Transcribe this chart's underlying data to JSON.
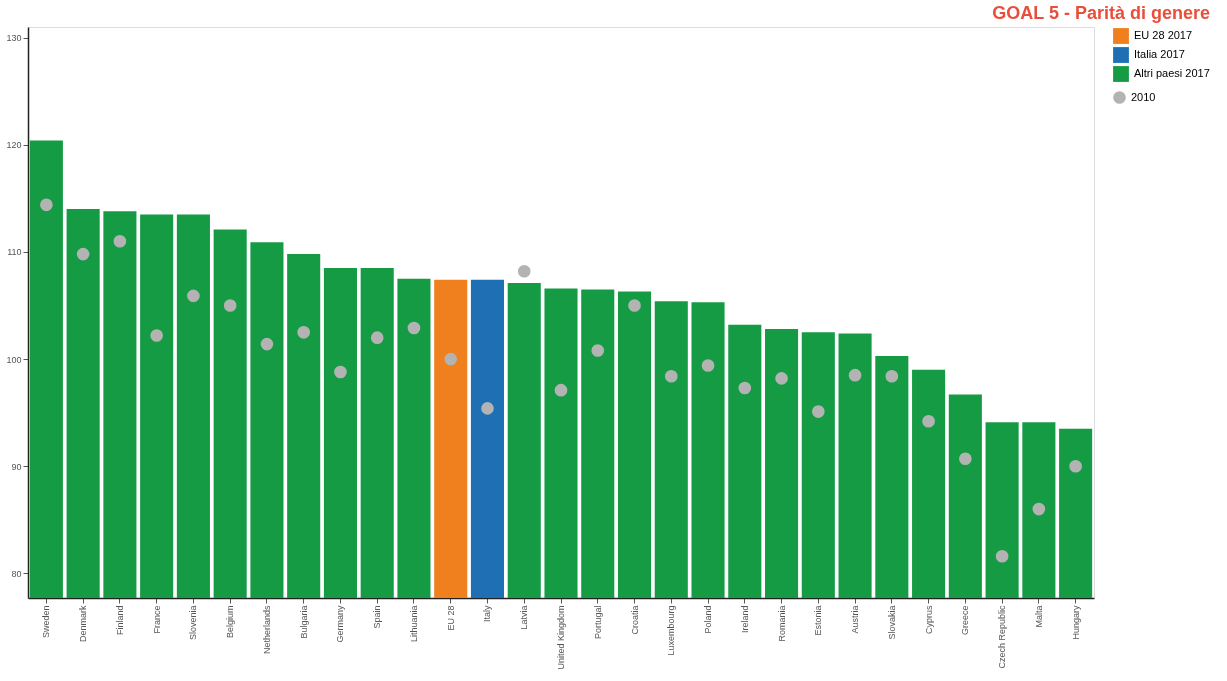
{
  "chart_data": {
    "type": "bar",
    "title": "GOAL 5 - Parità di genere",
    "categories": [
      "Sweden",
      "Denmark",
      "Finland",
      "France",
      "Slovenia",
      "Belgium",
      "Netherlands",
      "Bulgaria",
      "Germany",
      "Spain",
      "Lithuania",
      "EU 28",
      "Italy",
      "Latvia",
      "United Kingdom",
      "Portugal",
      "Croatia",
      "Luxembourg",
      "Poland",
      "Ireland",
      "Romania",
      "Estonia",
      "Austria",
      "Slovakia",
      "Cyprus",
      "Greece",
      "Czech Republic",
      "Malta",
      "Hungary"
    ],
    "series": [
      {
        "name": "EU 28 2017",
        "color": "#f07f1e",
        "values": [
          null,
          null,
          null,
          null,
          null,
          null,
          null,
          null,
          null,
          null,
          null,
          107.4,
          null,
          null,
          null,
          null,
          null,
          null,
          null,
          null,
          null,
          null,
          null,
          null,
          null,
          null,
          null,
          null,
          null
        ]
      },
      {
        "name": "Italia 2017",
        "color": "#1f6fb5",
        "values": [
          null,
          null,
          null,
          null,
          null,
          null,
          null,
          null,
          null,
          null,
          null,
          null,
          107.4,
          null,
          null,
          null,
          null,
          null,
          null,
          null,
          null,
          null,
          null,
          null,
          null,
          null,
          null,
          null,
          null
        ]
      },
      {
        "name": "Altri paesi 2017",
        "color": "#169b45",
        "values": [
          120.4,
          114.0,
          113.8,
          113.5,
          113.5,
          112.1,
          110.9,
          109.8,
          108.5,
          108.5,
          107.5,
          null,
          null,
          107.1,
          106.6,
          106.5,
          106.3,
          105.4,
          105.3,
          103.2,
          102.8,
          102.5,
          102.4,
          100.3,
          99.0,
          96.7,
          94.1,
          94.1,
          93.5
        ]
      },
      {
        "name": "2010",
        "type": "scatter",
        "color": "#b3b3b3",
        "values": [
          114.4,
          109.8,
          111.0,
          102.2,
          105.9,
          105.0,
          101.4,
          102.5,
          98.8,
          102.0,
          102.9,
          100.0,
          95.4,
          108.2,
          97.1,
          100.8,
          105.0,
          98.4,
          99.4,
          97.3,
          98.2,
          95.1,
          98.5,
          98.4,
          94.2,
          90.7,
          81.6,
          86.0,
          90.0
        ]
      }
    ],
    "ylim": [
      77.7,
      131
    ],
    "yticks": [
      80,
      90,
      100,
      110,
      120,
      130
    ],
    "grid": false,
    "legend": "right",
    "marker": "circle"
  }
}
